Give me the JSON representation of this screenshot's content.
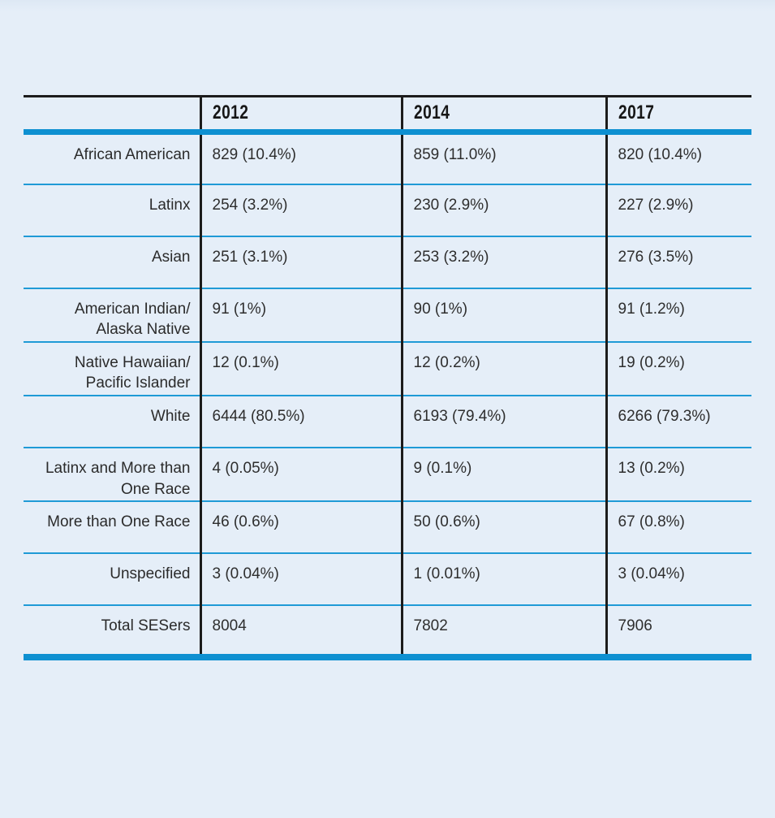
{
  "page": {
    "background_color": "#e5eef8"
  },
  "table_style": {
    "thick_rule_color": "#0e90d1",
    "thin_rule_color": "#1f9ad6",
    "frame_rule_color": "#1c1c1c"
  },
  "chart_data": {
    "type": "table",
    "columns": [
      "",
      "2012",
      "2014",
      "2017"
    ],
    "rows": [
      {
        "label": "African American",
        "y2012": "829 (10.4%)",
        "y2014": "859 (11.0%)",
        "y2017": "820 (10.4%)"
      },
      {
        "label": "Latinx",
        "y2012": "254 (3.2%)",
        "y2014": "230 (2.9%)",
        "y2017": "227 (2.9%)"
      },
      {
        "label": "Asian",
        "y2012": "251 (3.1%)",
        "y2014": "253 (3.2%)",
        "y2017": "276 (3.5%)"
      },
      {
        "label": "American Indian/\nAlaska Native",
        "y2012": "91 (1%)",
        "y2014": "90 (1%)",
        "y2017": "91 (1.2%)"
      },
      {
        "label": "Native Hawaiian/\nPacific Islander",
        "y2012": "12 (0.1%)",
        "y2014": "12 (0.2%)",
        "y2017": "19 (0.2%)"
      },
      {
        "label": "White",
        "y2012": "6444 (80.5%)",
        "y2014": "6193 (79.4%)",
        "y2017": "6266 (79.3%)"
      },
      {
        "label": "Latinx and More than\nOne Race",
        "y2012": "4 (0.05%)",
        "y2014": "9 (0.1%)",
        "y2017": "13 (0.2%)"
      },
      {
        "label": "More than One Race",
        "y2012": "46 (0.6%)",
        "y2014": "50 (0.6%)",
        "y2017": "67 (0.8%)"
      },
      {
        "label": "Unspecified",
        "y2012": "3 (0.04%)",
        "y2014": "1 (0.01%)",
        "y2017": "3 (0.04%)"
      },
      {
        "label": "Total SESers",
        "y2012": "8004",
        "y2014": "7802",
        "y2017": "7906"
      }
    ]
  }
}
